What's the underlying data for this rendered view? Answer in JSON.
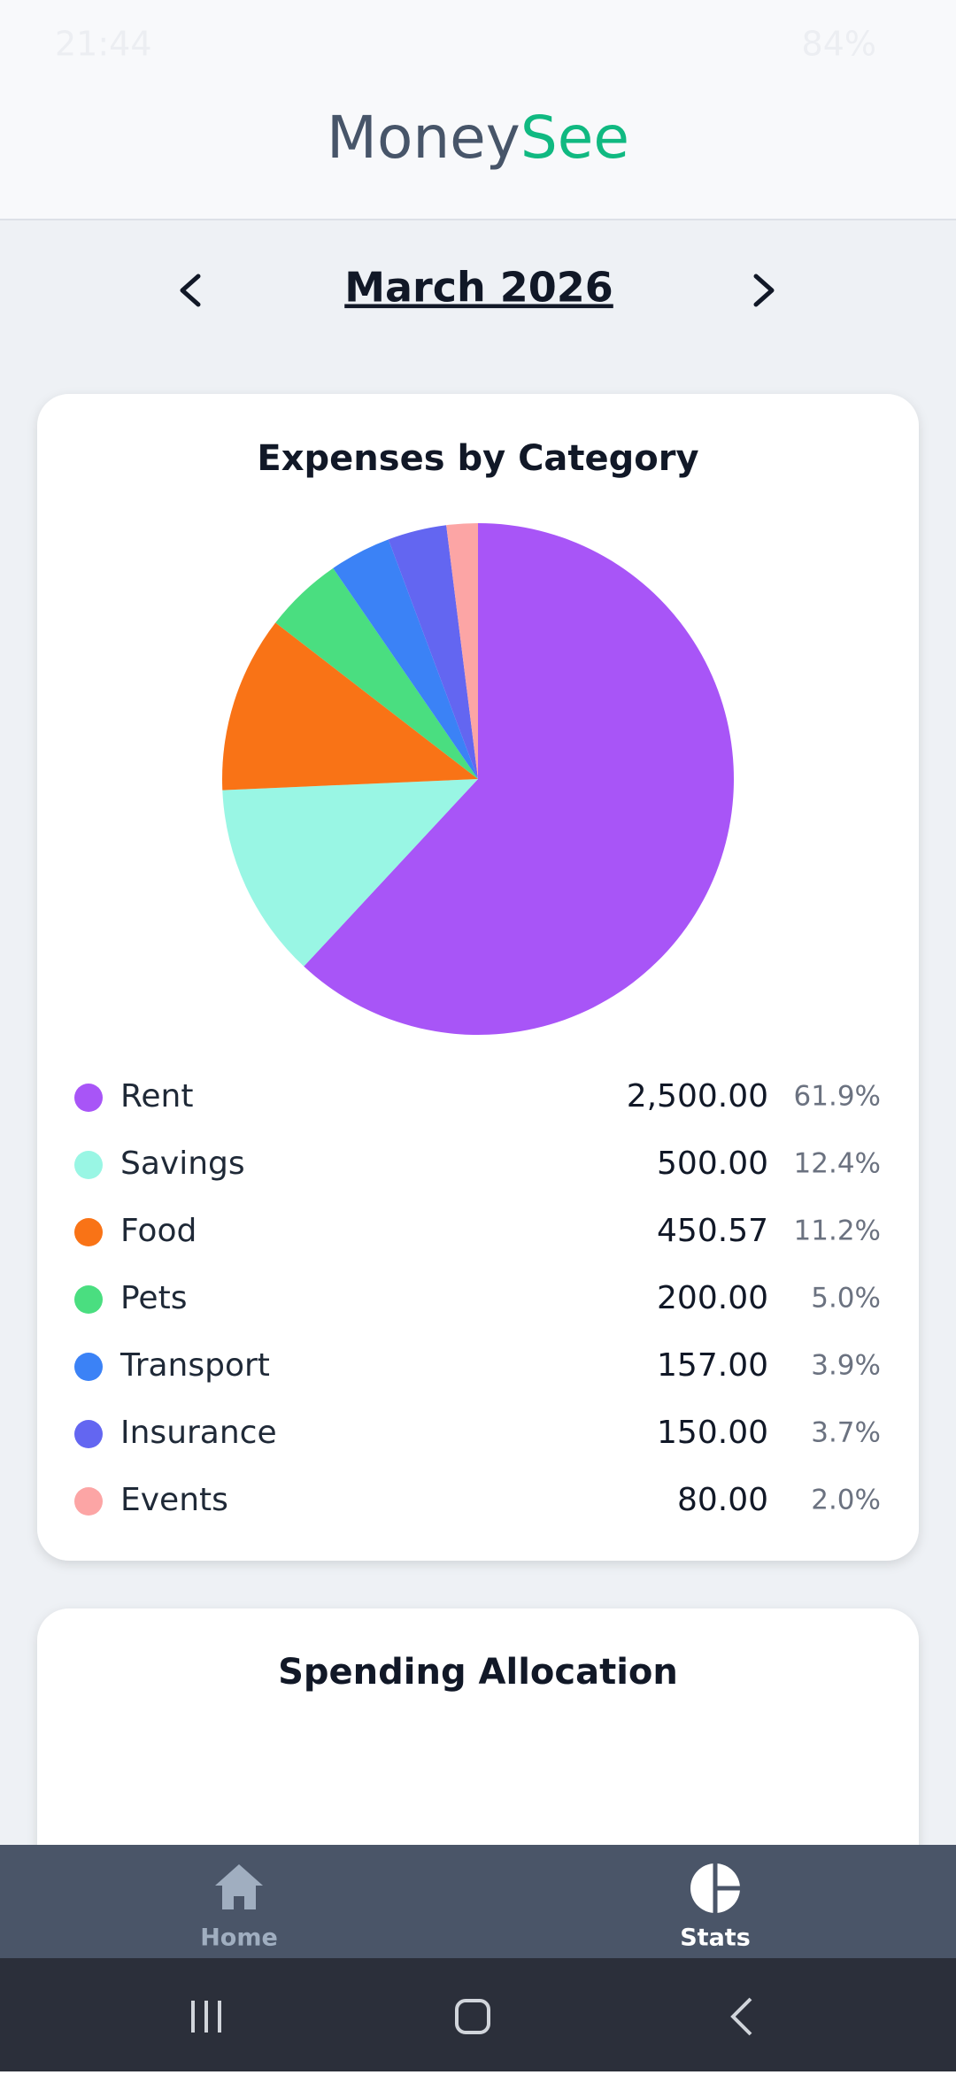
{
  "status_bar": {
    "time": "21:44",
    "battery": "84%"
  },
  "header": {
    "title_part1": "Money",
    "title_part2": "See"
  },
  "month_nav": {
    "label": "March 2026"
  },
  "chart_data": [
    {
      "type": "pie",
      "title": "Expenses by Category",
      "categories": [
        "Rent",
        "Savings",
        "Food",
        "Pets",
        "Transport",
        "Insurance",
        "Events"
      ],
      "colors": [
        "#a855f7",
        "#99f6e4",
        "#f97316",
        "#4ade80",
        "#3b82f6",
        "#6366f1",
        "#fca5a5"
      ],
      "values": [
        2500,
        500,
        450.57,
        200,
        157,
        150,
        80
      ],
      "value_labels": [
        "2,500.00",
        "500.00",
        "450.57",
        "200.00",
        "157.00",
        "150.00",
        "80.00"
      ],
      "percentages": [
        61.9,
        12.4,
        11.2,
        5.0,
        3.9,
        3.7,
        2.0
      ],
      "percentage_labels": [
        "61.9%",
        "12.4%",
        "11.2%",
        "5.0%",
        "3.9%",
        "3.7%",
        "2.0%"
      ]
    },
    {
      "type": "pie",
      "title": "Spending Allocation"
    }
  ],
  "bottom_nav": {
    "items": [
      {
        "label": "Home"
      },
      {
        "label": "Stats"
      }
    ]
  }
}
